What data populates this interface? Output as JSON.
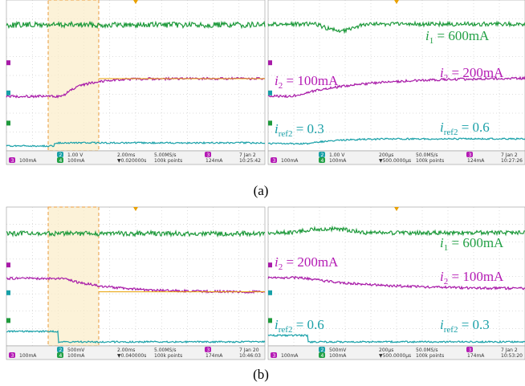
{
  "figures": [
    {
      "caption": "(a)",
      "panels": [
        {
          "status": {
            "ch3": "3",
            "ch3_scale": "100mA",
            "ch2": "2",
            "ch2_scale": "1.00 V",
            "ch4": "4",
            "ch4_scale": "100mA",
            "timebase": "2.00ms",
            "trigger_position": "▼0.020000s",
            "sample_rate": "5.00MS/s",
            "points": "100k points",
            "trigger_source": "3",
            "trigger_level": "124mA",
            "date": "7 Jan 2",
            "time": "10:25:42"
          }
        },
        {
          "annotations": [
            {
              "var": "i",
              "sub": "1",
              "rest": " = 600mA",
              "color": "#22a045"
            },
            {
              "var": "i",
              "sub": "2",
              "rest": " = 100mA",
              "color": "#b41ab4"
            },
            {
              "var": "i",
              "sub": "2",
              "rest": " = 200mA",
              "color": "#b41ab4"
            },
            {
              "var": "i",
              "sub": "ref2",
              "rest": " = 0.3",
              "color": "#1aa0a8"
            },
            {
              "var": "i",
              "sub": "ref2",
              "rest": " = 0.6",
              "color": "#1aa0a8"
            }
          ],
          "status": {
            "ch3": "3",
            "ch3_scale": "100mA",
            "ch2": "2",
            "ch2_scale": "1.00 V",
            "ch4": "4",
            "ch4_scale": "100mA",
            "timebase": "200μs",
            "trigger_position": "▼500.0000μs",
            "sample_rate": "50.0MS/s",
            "points": "100k points",
            "trigger_source": "3",
            "trigger_level": "124mA",
            "date": "7 Jan 2",
            "time": "10:27:26"
          }
        }
      ]
    },
    {
      "caption": "(b)",
      "panels": [
        {
          "status": {
            "ch3": "3",
            "ch3_scale": "100mA",
            "ch2": "2",
            "ch2_scale": "500mV",
            "ch4": "4",
            "ch4_scale": "100mA",
            "timebase": "2.00ms",
            "trigger_position": "▼0.040000s",
            "sample_rate": "5.00MS/s",
            "points": "100k points",
            "trigger_source": "3",
            "trigger_level": "174mA",
            "date": "7 Jan 20",
            "time": "10:46:03"
          }
        },
        {
          "annotations": [
            {
              "var": "i",
              "sub": "1",
              "rest": " = 600mA",
              "color": "#22a045"
            },
            {
              "var": "i",
              "sub": "2",
              "rest": " = 200mA",
              "color": "#b41ab4"
            },
            {
              "var": "i",
              "sub": "2",
              "rest": " = 100mA",
              "color": "#b41ab4"
            },
            {
              "var": "i",
              "sub": "ref2",
              "rest": " = 0.6",
              "color": "#1aa0a8"
            },
            {
              "var": "i",
              "sub": "ref2",
              "rest": " = 0.3",
              "color": "#1aa0a8"
            }
          ],
          "status": {
            "ch3": "3",
            "ch3_scale": "100mA",
            "ch2": "2",
            "ch2_scale": "500mV",
            "ch4": "4",
            "ch4_scale": "100mA",
            "timebase": "200μs",
            "trigger_position": "▼500.0000μs",
            "sample_rate": "50.0MS/s",
            "points": "100k points",
            "trigger_source": "3",
            "trigger_level": "174mA",
            "date": "7 Jan 2",
            "time": "10:53:20"
          }
        }
      ]
    }
  ]
}
